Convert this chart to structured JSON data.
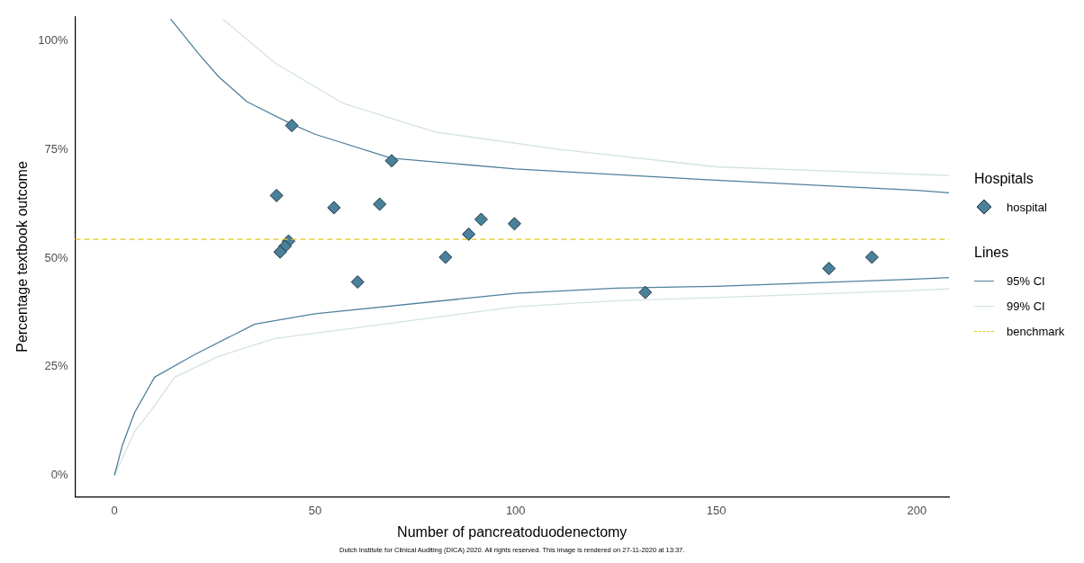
{
  "chart_data": {
    "type": "scatter",
    "xlabel": "Number of pancreatoduodenectomy",
    "ylabel": "Percentage textbook outcome",
    "legend_title": "Hospitals",
    "annotations": [
      "Lines",
      "Dutch Institute for Clinical Auditing (DICA) 2020. All rights reserved. This image is rendered on 27-11-2020 at 13:37."
    ],
    "xlim": [
      -9.8,
      208
    ],
    "xticks": [
      0,
      50,
      100,
      150,
      200
    ],
    "ylim": [
      -4.9,
      105.5
    ],
    "yticks": [
      {
        "value": 0,
        "label": "0%"
      },
      {
        "value": 25,
        "label": "25%"
      },
      {
        "value": 50,
        "label": "50%"
      },
      {
        "value": 75,
        "label": "75%"
      },
      {
        "value": 100,
        "label": "100%"
      }
    ],
    "grid": false,
    "legend": "right",
    "series": [
      {
        "name": "95% CI",
        "type": "line",
        "color": "#4f819c",
        "x": [
          14,
          21,
          26,
          33,
          44,
          50,
          69,
          100,
          150,
          200,
          208
        ],
        "values": [
          105,
          97,
          91.7,
          86,
          80.9,
          78.5,
          73,
          70.5,
          67.9,
          65.6,
          65
        ]
      },
      {
        "type": "line",
        "color": "#4f819c",
        "x": [
          0,
          2,
          5,
          10,
          20,
          35,
          50,
          100,
          125,
          150,
          198,
          208
        ],
        "values": [
          0,
          7,
          14.4,
          22.6,
          27.8,
          34.8,
          37.2,
          41.9,
          43.1,
          43.5,
          45.1,
          45.5
        ]
      },
      {
        "name": "99% CI",
        "type": "line",
        "color": "#d3e2e4",
        "x": [
          27,
          40,
          57,
          80,
          111,
          150,
          208
        ],
        "values": [
          105,
          94.9,
          85.6,
          79,
          75,
          71,
          69
        ]
      },
      {
        "type": "line",
        "color": "#d3e2e4",
        "x": [
          0,
          2,
          5,
          10,
          15,
          26,
          40,
          100,
          125,
          150,
          198,
          208
        ],
        "values": [
          0,
          4,
          10,
          16,
          22.6,
          27.4,
          31.5,
          38.8,
          40.2,
          40.9,
          42.5,
          42.9
        ]
      },
      {
        "name": "hospital",
        "type": "scatter",
        "marker": "diamond",
        "color": "#4a8099",
        "x": [
          44.2,
          69.1,
          40.4,
          54.7,
          66.1,
          91.4,
          99.7,
          88.3,
          43.4,
          42.5,
          41.3,
          82.5,
          60.6,
          132.3,
          178.1,
          188.8
        ],
        "values": [
          80.5,
          72.4,
          64.4,
          61.6,
          62.4,
          58.9,
          57.9,
          55.5,
          53.9,
          52.7,
          51.4,
          50.2,
          44.5,
          42.1,
          47.6,
          50.2
        ]
      }
    ],
    "ref_lines": [
      {
        "axis": "y",
        "value": 54.3,
        "label": "benchmark",
        "color": "#e6c619",
        "line_style": "dashed"
      }
    ]
  }
}
